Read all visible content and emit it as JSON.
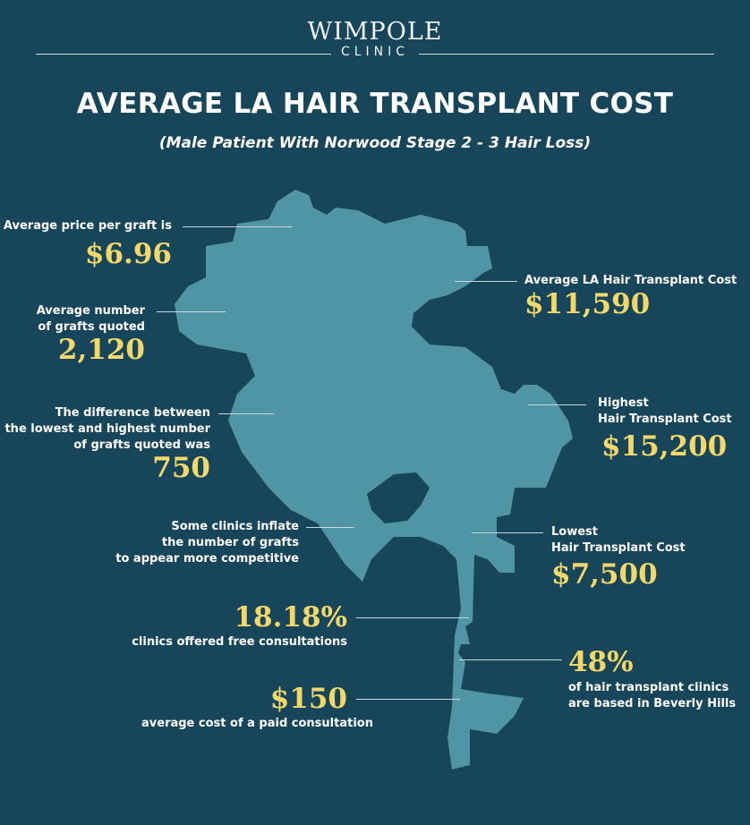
{
  "brand": {
    "name": "WIMPOLE",
    "sub": "CLINIC"
  },
  "title": "AVERAGE LA HAIR TRANSPLANT COST",
  "subtitle": "(Male Patient With Norwood Stage 2 - 3 Hair Loss)",
  "colors": {
    "background": "#17465a",
    "map": "#5095a5",
    "accent": "#f2d86a"
  },
  "stats": {
    "price_per_graft": {
      "label": "Average price per graft is",
      "value": "$6.96"
    },
    "grafts_quoted": {
      "label1": "Average number",
      "label2": "of grafts quoted",
      "value": "2,120"
    },
    "difference": {
      "label1": "The difference between",
      "label2": "the lowest and highest number",
      "label3": "of grafts quoted was",
      "value": "750"
    },
    "inflate": {
      "label1": "Some clinics inflate",
      "label2": "the number of grafts",
      "label3": "to appear more competitive"
    },
    "free_consult": {
      "value": "18.18%",
      "label": "clinics offered free consultations"
    },
    "paid_consult": {
      "value": "$150",
      "label": "average cost of a paid consultation"
    },
    "average_cost": {
      "label": "Average LA Hair Transplant Cost",
      "value": "$11,590"
    },
    "highest": {
      "label1": "Highest",
      "label2": "Hair Transplant Cost",
      "value": "$15,200"
    },
    "lowest": {
      "label1": "Lowest",
      "label2": "Hair Transplant Cost",
      "value": "$7,500"
    },
    "beverly_hills": {
      "value": "48%",
      "label1": "of hair transplant clinics",
      "label2": "are based in Beverly Hills"
    }
  }
}
